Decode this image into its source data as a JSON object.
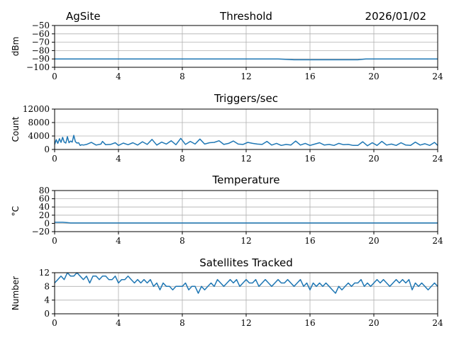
{
  "header": {
    "site": "AgSite",
    "date": "2026/01/02"
  },
  "colors": {
    "series": "#1f77b4",
    "grid": "#b0b0b0",
    "axis": "#000000"
  },
  "chart_data": [
    {
      "type": "line",
      "title": "Threshold",
      "xlabel": "",
      "ylabel": "dBm",
      "xlim": [
        0,
        24
      ],
      "ylim": [
        -100,
        -50
      ],
      "xticks": [
        0,
        4,
        8,
        12,
        16,
        20,
        24
      ],
      "yticks": [
        -100,
        -90,
        -80,
        -70,
        -60,
        -50
      ],
      "grid": true,
      "series": [
        {
          "x": [
            0,
            1,
            2,
            4,
            6,
            8,
            10,
            12,
            13,
            14,
            15,
            16,
            18,
            19,
            19.5,
            20,
            22,
            24
          ],
          "values": [
            -90,
            -90,
            -90,
            -90,
            -90,
            -90,
            -90,
            -90,
            -90,
            -90,
            -91,
            -91,
            -91,
            -91,
            -90,
            -90,
            -90,
            -90
          ]
        }
      ]
    },
    {
      "type": "line",
      "title": "Triggers/sec",
      "xlabel": "",
      "ylabel": "Count",
      "xlim": [
        0,
        24
      ],
      "ylim": [
        0,
        12000
      ],
      "xticks": [
        0,
        4,
        8,
        12,
        16,
        20,
        24
      ],
      "yticks": [
        0,
        4000,
        8000,
        12000
      ],
      "grid": true,
      "series": [
        {
          "x": [
            0,
            0.1,
            0.2,
            0.3,
            0.4,
            0.5,
            0.6,
            0.7,
            0.8,
            0.9,
            1.0,
            1.1,
            1.2,
            1.3,
            1.4,
            1.5,
            1.6,
            1.7,
            1.8,
            2.0,
            2.3,
            2.6,
            2.9,
            3.0,
            3.2,
            3.5,
            3.8,
            4.0,
            4.3,
            4.6,
            4.9,
            5.2,
            5.5,
            5.8,
            6.1,
            6.4,
            6.7,
            7.0,
            7.3,
            7.6,
            7.9,
            8.2,
            8.5,
            8.8,
            9.1,
            9.4,
            9.7,
            10.0,
            10.3,
            10.6,
            10.9,
            11.2,
            11.5,
            11.8,
            12.1,
            12.4,
            12.7,
            13.0,
            13.3,
            13.6,
            13.9,
            14.2,
            14.5,
            14.8,
            15.1,
            15.4,
            15.7,
            16.0,
            16.3,
            16.6,
            16.9,
            17.2,
            17.5,
            17.8,
            18.1,
            18.4,
            18.7,
            19.0,
            19.3,
            19.6,
            19.9,
            20.2,
            20.5,
            20.8,
            21.1,
            21.4,
            21.7,
            22.0,
            22.3,
            22.6,
            22.9,
            23.2,
            23.5,
            23.8,
            24.0
          ],
          "values": [
            1500,
            2900,
            1800,
            3200,
            2100,
            3600,
            2200,
            1900,
            3800,
            2000,
            2500,
            2200,
            4200,
            2300,
            1900,
            2000,
            1200,
            1400,
            1300,
            1500,
            2100,
            1300,
            1600,
            2400,
            1400,
            1500,
            2000,
            1200,
            1900,
            1400,
            2000,
            1300,
            2300,
            1500,
            3000,
            1300,
            2200,
            1600,
            2600,
            1400,
            3300,
            1500,
            2400,
            1600,
            3100,
            1600,
            2000,
            2100,
            2600,
            1500,
            1800,
            2500,
            1600,
            1500,
            2100,
            1800,
            1600,
            1500,
            2400,
            1300,
            1800,
            1200,
            1500,
            1300,
            2500,
            1300,
            1800,
            1200,
            1600,
            2000,
            1300,
            1500,
            1200,
            1800,
            1400,
            1500,
            1200,
            1200,
            2300,
            1100,
            2000,
            1200,
            2400,
            1300,
            1600,
            1200,
            2000,
            1300,
            1200,
            2200,
            1300,
            1700,
            1200,
            2100,
            1200
          ]
        }
      ]
    },
    {
      "type": "line",
      "title": "Temperature",
      "xlabel": "",
      "ylabel": "°C",
      "xlim": [
        0,
        24
      ],
      "ylim": [
        -20,
        80
      ],
      "xticks": [
        0,
        4,
        8,
        12,
        16,
        20,
        24
      ],
      "yticks": [
        -20,
        0,
        20,
        40,
        60,
        80
      ],
      "grid": true,
      "series": [
        {
          "x": [
            0,
            0.5,
            1,
            2,
            4,
            6,
            8,
            10,
            12,
            14,
            16,
            18,
            20,
            22,
            24
          ],
          "values": [
            3,
            3,
            1,
            1,
            1,
            1,
            1,
            1,
            1,
            1,
            1,
            1,
            1,
            1,
            1
          ]
        }
      ]
    },
    {
      "type": "line",
      "title": "Satellites Tracked",
      "xlabel": "",
      "ylabel": "Number",
      "xlim": [
        0,
        24
      ],
      "ylim": [
        0,
        12
      ],
      "xticks": [
        0,
        4,
        8,
        12,
        16,
        20,
        24
      ],
      "yticks": [
        0,
        4,
        8,
        12
      ],
      "grid": true,
      "series": [
        {
          "x": [
            0,
            0.2,
            0.4,
            0.6,
            0.8,
            1.0,
            1.2,
            1.4,
            1.6,
            1.8,
            2.0,
            2.2,
            2.4,
            2.6,
            2.8,
            3.0,
            3.2,
            3.4,
            3.6,
            3.8,
            4.0,
            4.2,
            4.4,
            4.6,
            4.8,
            5.0,
            5.2,
            5.4,
            5.6,
            5.8,
            6.0,
            6.2,
            6.4,
            6.6,
            6.8,
            7.0,
            7.2,
            7.4,
            7.6,
            7.8,
            8.0,
            8.2,
            8.4,
            8.6,
            8.8,
            9.0,
            9.2,
            9.4,
            9.6,
            9.8,
            10.0,
            10.2,
            10.4,
            10.6,
            10.8,
            11.0,
            11.2,
            11.4,
            11.6,
            11.8,
            12.0,
            12.2,
            12.4,
            12.6,
            12.8,
            13.0,
            13.2,
            13.4,
            13.6,
            13.8,
            14.0,
            14.2,
            14.4,
            14.6,
            14.8,
            15.0,
            15.2,
            15.4,
            15.6,
            15.8,
            16.0,
            16.2,
            16.4,
            16.6,
            16.8,
            17.0,
            17.2,
            17.4,
            17.6,
            17.8,
            18.0,
            18.2,
            18.4,
            18.6,
            18.8,
            19.0,
            19.2,
            19.4,
            19.6,
            19.8,
            20.0,
            20.2,
            20.4,
            20.6,
            20.8,
            21.0,
            21.2,
            21.4,
            21.6,
            21.8,
            22.0,
            22.2,
            22.4,
            22.6,
            22.8,
            23.0,
            23.2,
            23.4,
            23.6,
            23.8,
            24.0
          ],
          "values": [
            9,
            10,
            11,
            10,
            12,
            11,
            11,
            12,
            11,
            10,
            11,
            9,
            11,
            11,
            10,
            11,
            11,
            10,
            10,
            11,
            9,
            10,
            10,
            11,
            10,
            9,
            10,
            9,
            10,
            9,
            10,
            8,
            9,
            7,
            9,
            8,
            8,
            7,
            8,
            8,
            8,
            9,
            7,
            8,
            8,
            6,
            8,
            7,
            8,
            9,
            8,
            10,
            9,
            8,
            9,
            10,
            9,
            10,
            8,
            9,
            10,
            9,
            9,
            10,
            8,
            9,
            10,
            9,
            8,
            9,
            10,
            9,
            9,
            10,
            9,
            8,
            9,
            10,
            8,
            9,
            7,
            9,
            8,
            9,
            8,
            9,
            8,
            7,
            6,
            8,
            7,
            8,
            9,
            8,
            9,
            9,
            10,
            8,
            9,
            8,
            9,
            10,
            9,
            10,
            9,
            8,
            9,
            10,
            9,
            10,
            9,
            10,
            7,
            9,
            8,
            9,
            8,
            7,
            8,
            9,
            8
          ]
        }
      ]
    }
  ]
}
